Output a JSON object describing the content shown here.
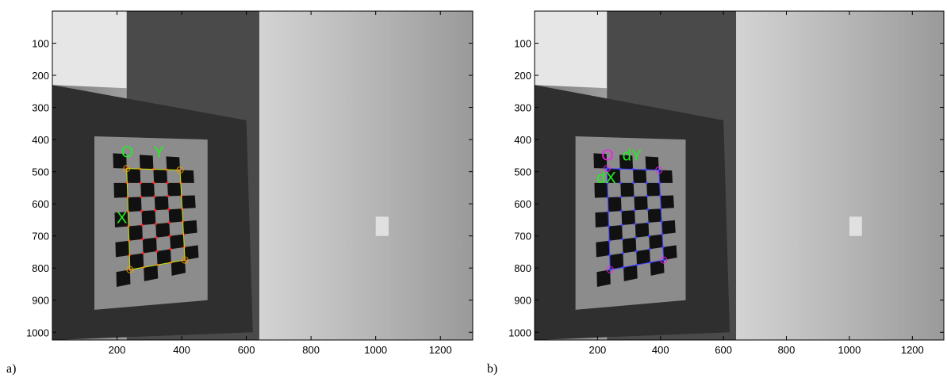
{
  "chart_data": [
    {
      "type": "image",
      "label": "a)",
      "xlim": [
        0,
        1300
      ],
      "ylim": [
        0,
        1024
      ],
      "y_reversed": true,
      "xticks": [
        200,
        400,
        600,
        800,
        1000,
        1200
      ],
      "yticks": [
        100,
        200,
        300,
        400,
        500,
        600,
        700,
        800,
        900,
        1000
      ],
      "annotations": [
        {
          "text": "O",
          "color": "#22ee22"
        },
        {
          "text": "Y",
          "color": "#22ee22"
        },
        {
          "text": "X",
          "color": "#22ee22"
        }
      ]
    },
    {
      "type": "image",
      "label": "b)",
      "xlim": [
        0,
        1300
      ],
      "ylim": [
        0,
        1024
      ],
      "y_reversed": true,
      "xticks": [
        200,
        400,
        600,
        800,
        1000,
        1200
      ],
      "yticks": [
        100,
        200,
        300,
        400,
        500,
        600,
        700,
        800,
        900,
        1000
      ],
      "annotations": [
        {
          "text": "O",
          "color": "#ee22ee"
        },
        {
          "text": "dY",
          "color": "#22ee22"
        },
        {
          "text": "dX",
          "color": "#22ee22"
        }
      ]
    }
  ]
}
